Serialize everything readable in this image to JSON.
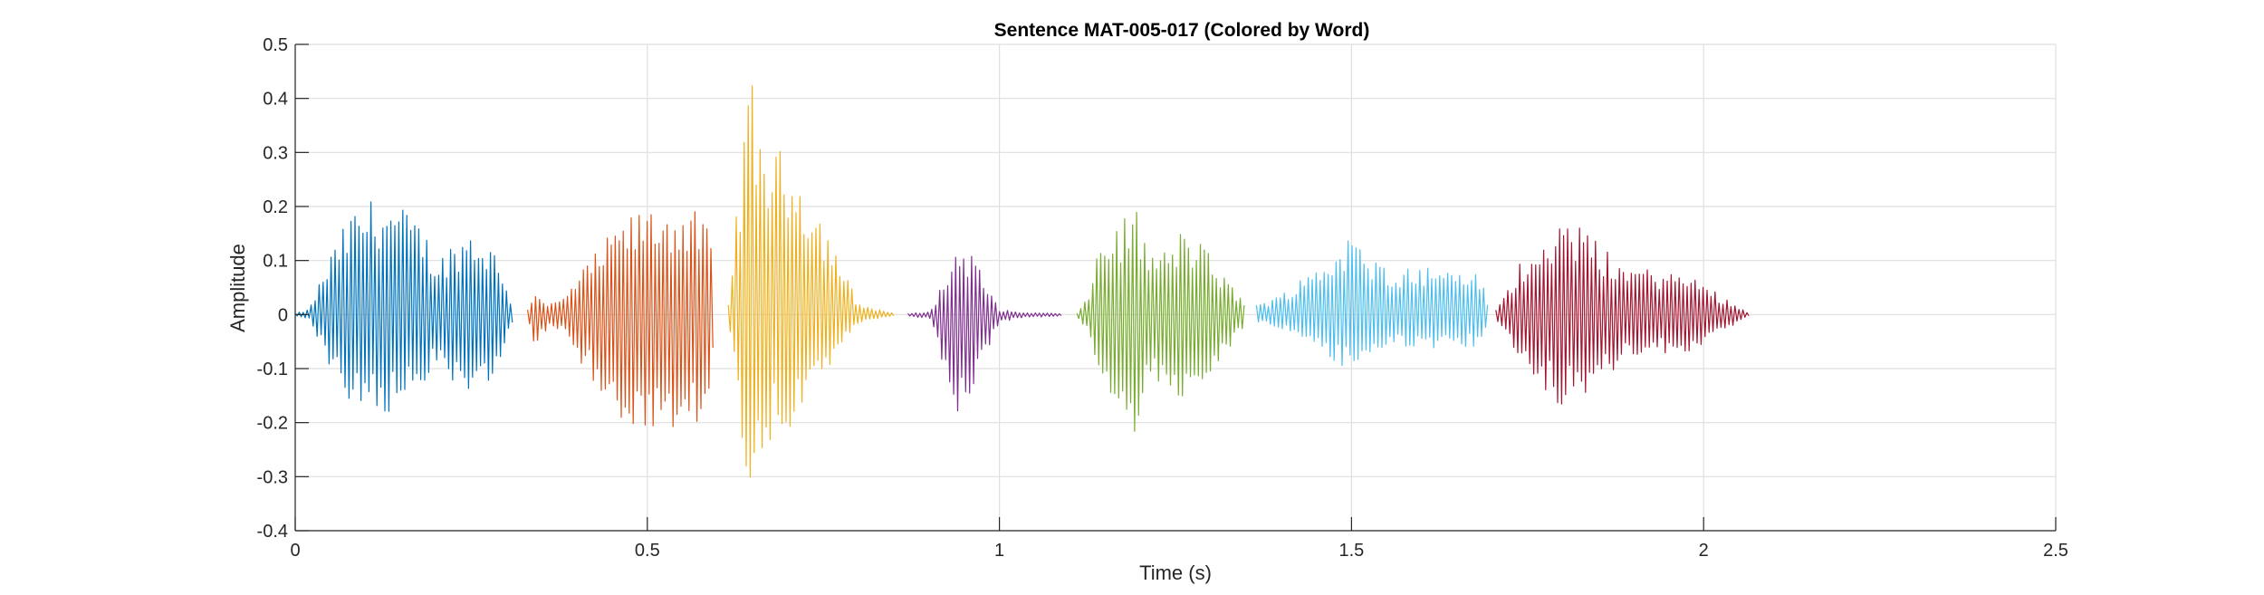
{
  "chart_data": {
    "type": "line",
    "title": "Sentence MAT-005-017 (Colored by Word)",
    "xlabel": "Time (s)",
    "ylabel": "Amplitude",
    "xlim": [
      0,
      2.5
    ],
    "ylim": [
      -0.4,
      0.5
    ],
    "xticks": [
      0,
      0.5,
      1,
      1.5,
      2,
      2.5
    ],
    "xtick_labels": [
      "0",
      "0.5",
      "1",
      "1.5",
      "2",
      "2.5"
    ],
    "yticks": [
      -0.4,
      -0.3,
      -0.2,
      -0.1,
      0,
      0.1,
      0.2,
      0.3,
      0.4,
      0.5
    ],
    "ytick_labels": [
      "-0.4",
      "-0.3",
      "-0.2",
      "-0.1",
      "0",
      "0.1",
      "0.2",
      "0.3",
      "0.4",
      "0.5"
    ],
    "grid": true,
    "series": [
      {
        "color": "#0072BD",
        "t_start": 0.0,
        "t_end": 0.31,
        "envelope": [
          [
            0.0,
            0.002
          ],
          [
            0.02,
            0.01
          ],
          [
            0.04,
            0.08
          ],
          [
            0.06,
            0.14
          ],
          [
            0.08,
            0.19
          ],
          [
            0.1,
            0.21
          ],
          [
            0.12,
            0.22
          ],
          [
            0.15,
            0.2
          ],
          [
            0.18,
            0.17
          ],
          [
            0.2,
            0.1
          ],
          [
            0.22,
            0.13
          ],
          [
            0.25,
            0.16
          ],
          [
            0.28,
            0.13
          ],
          [
            0.3,
            0.06
          ],
          [
            0.31,
            0.01
          ]
        ],
        "min_peak": -0.2
      },
      {
        "color": "#D95319",
        "t_start": 0.33,
        "t_end": 0.595,
        "envelope": [
          [
            0.33,
            0.01
          ],
          [
            0.34,
            0.05
          ],
          [
            0.36,
            0.02
          ],
          [
            0.38,
            0.03
          ],
          [
            0.4,
            0.07
          ],
          [
            0.43,
            0.12
          ],
          [
            0.46,
            0.17
          ],
          [
            0.5,
            0.2
          ],
          [
            0.54,
            0.2
          ],
          [
            0.57,
            0.19
          ],
          [
            0.59,
            0.15
          ],
          [
            0.595,
            0.02
          ]
        ],
        "min_peak": -0.23
      },
      {
        "color": "#EDB120",
        "t_start": 0.615,
        "t_end": 0.85,
        "envelope": [
          [
            0.615,
            0.02
          ],
          [
            0.63,
            0.25
          ],
          [
            0.64,
            0.38
          ],
          [
            0.645,
            0.45
          ],
          [
            0.66,
            0.36
          ],
          [
            0.68,
            0.3
          ],
          [
            0.7,
            0.31
          ],
          [
            0.72,
            0.26
          ],
          [
            0.75,
            0.18
          ],
          [
            0.78,
            0.08
          ],
          [
            0.8,
            0.02
          ],
          [
            0.85,
            0.003
          ]
        ],
        "min_peak": -0.33
      },
      {
        "color": "#7E2F8E",
        "t_start": 0.87,
        "t_end": 1.09,
        "envelope": [
          [
            0.87,
            0.002
          ],
          [
            0.9,
            0.005
          ],
          [
            0.92,
            0.06
          ],
          [
            0.94,
            0.13
          ],
          [
            0.96,
            0.12
          ],
          [
            0.98,
            0.06
          ],
          [
            1.0,
            0.01
          ],
          [
            1.03,
            0.004
          ],
          [
            1.09,
            0.002
          ]
        ],
        "min_peak": -0.2
      },
      {
        "color": "#77AC30",
        "t_start": 1.11,
        "t_end": 1.35,
        "envelope": [
          [
            1.11,
            0.002
          ],
          [
            1.125,
            0.03
          ],
          [
            1.14,
            0.13
          ],
          [
            1.16,
            0.16
          ],
          [
            1.18,
            0.18
          ],
          [
            1.19,
            0.22
          ],
          [
            1.21,
            0.12
          ],
          [
            1.24,
            0.12
          ],
          [
            1.26,
            0.16
          ],
          [
            1.29,
            0.13
          ],
          [
            1.32,
            0.07
          ],
          [
            1.35,
            0.02
          ]
        ],
        "min_peak": -0.23
      },
      {
        "color": "#4DBEEE",
        "t_start": 1.365,
        "t_end": 1.695,
        "envelope": [
          [
            1.365,
            0.02
          ],
          [
            1.39,
            0.03
          ],
          [
            1.42,
            0.06
          ],
          [
            1.46,
            0.1
          ],
          [
            1.5,
            0.15
          ],
          [
            1.52,
            0.11
          ],
          [
            1.56,
            0.09
          ],
          [
            1.6,
            0.09
          ],
          [
            1.65,
            0.09
          ],
          [
            1.68,
            0.08
          ],
          [
            1.695,
            0.02
          ]
        ],
        "min_peak": -0.11
      },
      {
        "color": "#A2142F",
        "t_start": 1.705,
        "t_end": 2.065,
        "envelope": [
          [
            1.705,
            0.01
          ],
          [
            1.72,
            0.04
          ],
          [
            1.74,
            0.1
          ],
          [
            1.77,
            0.15
          ],
          [
            1.8,
            0.18
          ],
          [
            1.83,
            0.16
          ],
          [
            1.86,
            0.12
          ],
          [
            1.9,
            0.09
          ],
          [
            1.95,
            0.08
          ],
          [
            1.99,
            0.07
          ],
          [
            2.02,
            0.04
          ],
          [
            2.05,
            0.015
          ],
          [
            2.065,
            0.003
          ]
        ],
        "min_peak": -0.17
      }
    ]
  }
}
